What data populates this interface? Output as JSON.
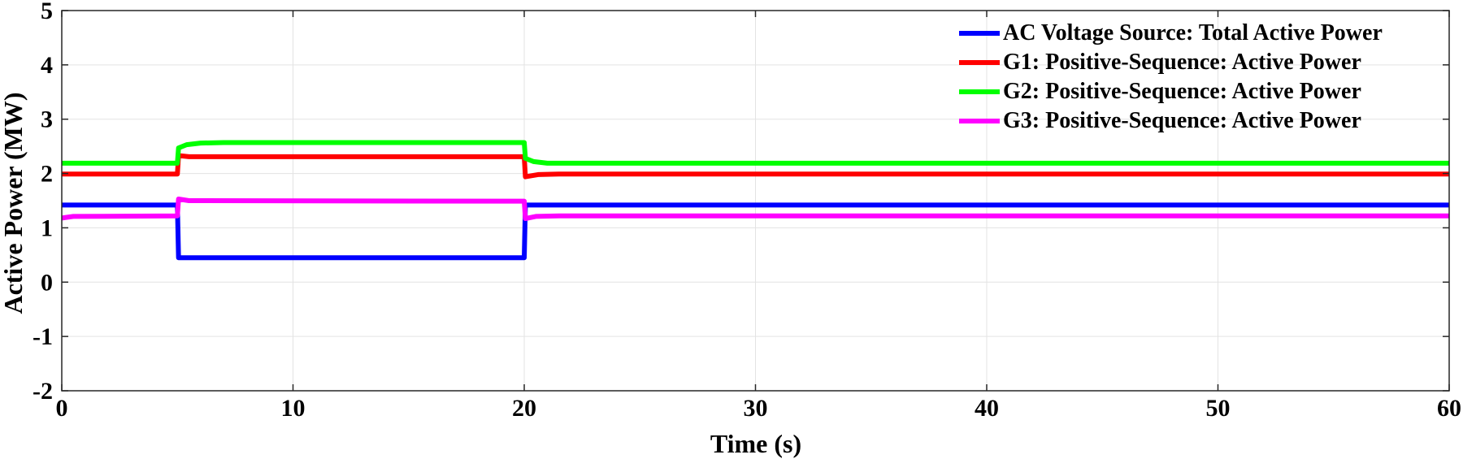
{
  "chart_data": {
    "type": "line",
    "title": "",
    "xlabel": "Time (s)",
    "ylabel": "Active Power (MW)",
    "xlim": [
      0,
      60
    ],
    "ylim": [
      -2,
      5
    ],
    "xticks": [
      0,
      10,
      20,
      30,
      40,
      50,
      60
    ],
    "yticks": [
      -2,
      -1,
      0,
      1,
      2,
      3,
      4,
      5
    ],
    "grid": true,
    "legend_position": "top-right",
    "series": [
      {
        "name": "AC Voltage Source: Total Active Power",
        "color": "#0000ff",
        "points": [
          [
            0,
            1.42
          ],
          [
            5.0,
            1.42
          ],
          [
            5.05,
            0.45
          ],
          [
            20.0,
            0.45
          ],
          [
            20.05,
            1.42
          ],
          [
            60,
            1.42
          ]
        ]
      },
      {
        "name": "G1: Positive-Sequence: Active Power",
        "color": "#ff0000",
        "points": [
          [
            0,
            1.99
          ],
          [
            5.0,
            1.99
          ],
          [
            5.05,
            2.33
          ],
          [
            5.5,
            2.31
          ],
          [
            20.0,
            2.31
          ],
          [
            20.05,
            1.94
          ],
          [
            20.6,
            1.98
          ],
          [
            21.5,
            1.99
          ],
          [
            60,
            1.99
          ]
        ]
      },
      {
        "name": "G2: Positive-Sequence: Active Power",
        "color": "#00ff00",
        "points": [
          [
            0,
            2.19
          ],
          [
            5.0,
            2.19
          ],
          [
            5.05,
            2.47
          ],
          [
            5.4,
            2.53
          ],
          [
            6.0,
            2.56
          ],
          [
            7.0,
            2.57
          ],
          [
            20.0,
            2.57
          ],
          [
            20.05,
            2.28
          ],
          [
            20.4,
            2.22
          ],
          [
            21.0,
            2.19
          ],
          [
            60,
            2.19
          ]
        ]
      },
      {
        "name": "G3: Positive-Sequence: Active Power",
        "color": "#ff00ff",
        "points": [
          [
            0,
            1.18
          ],
          [
            0.5,
            1.21
          ],
          [
            5.0,
            1.22
          ],
          [
            5.05,
            1.53
          ],
          [
            5.5,
            1.5
          ],
          [
            20.0,
            1.49
          ],
          [
            20.05,
            1.17
          ],
          [
            20.5,
            1.21
          ],
          [
            21.5,
            1.22
          ],
          [
            60,
            1.22
          ]
        ]
      }
    ]
  }
}
